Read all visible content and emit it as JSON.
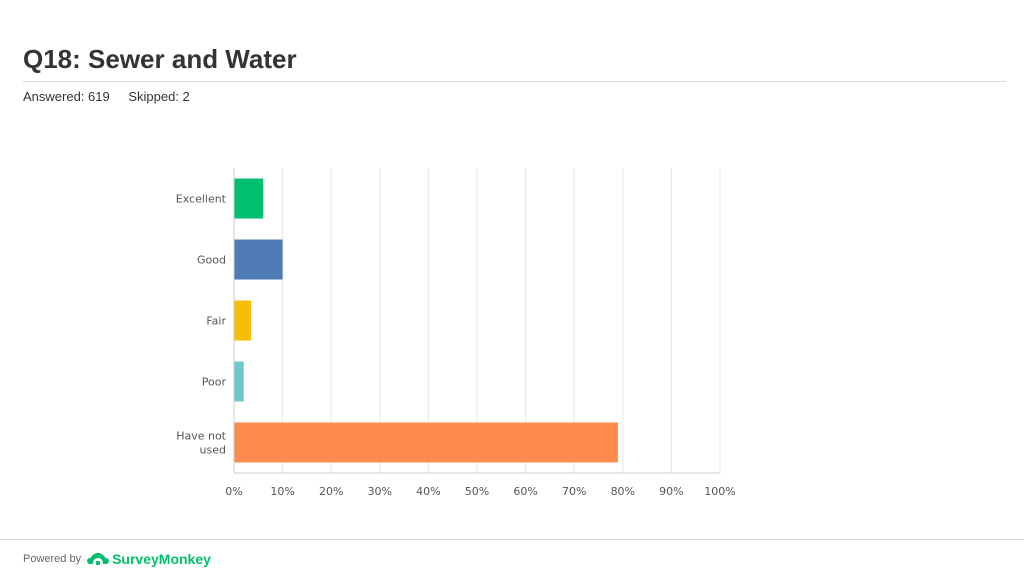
{
  "header": {
    "title": "Q18: Sewer and Water",
    "answered": "Answered: 619",
    "skipped": "Skipped: 2"
  },
  "chart_data": {
    "type": "bar",
    "orientation": "horizontal",
    "categories": [
      "Excellent",
      "Good",
      "Fair",
      "Poor",
      "Have not used"
    ],
    "values": [
      6,
      10,
      3.5,
      2,
      79
    ],
    "colors": [
      "#00bf6f",
      "#507cb6",
      "#f9be00",
      "#6bc8cd",
      "#ff8b4f"
    ],
    "xlim": [
      0,
      100
    ],
    "xticks": [
      "0%",
      "10%",
      "20%",
      "30%",
      "40%",
      "50%",
      "60%",
      "70%",
      "80%",
      "90%",
      "100%"
    ],
    "grid": true,
    "legend": "none"
  },
  "footer": {
    "powered_by": "Powered by",
    "brand": "SurveyMonkey",
    "brand_color": "#00bf6f",
    "brand_icon": "surveymonkey-logo-icon"
  }
}
